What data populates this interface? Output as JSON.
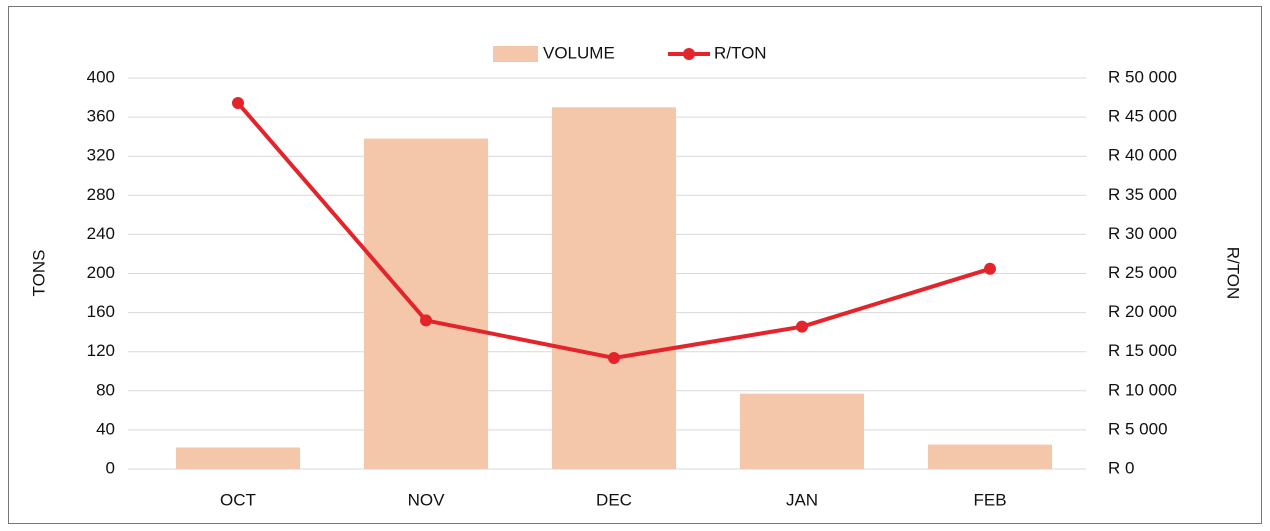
{
  "chart_data": {
    "type": "bar",
    "categories": [
      "OCT",
      "NOV",
      "DEC",
      "JAN",
      "FEB"
    ],
    "series": [
      {
        "name": "VOLUME",
        "type": "bar",
        "color": "#f4c7ab",
        "values": [
          22,
          338,
          370,
          77,
          25
        ]
      },
      {
        "name": "R/TON",
        "type": "line",
        "axis": "y2",
        "color": "#e3242b",
        "values": [
          46800,
          19000,
          14200,
          18200,
          25600
        ]
      }
    ],
    "ylabel": "TONS",
    "y2label": "R/TON",
    "ylim": [
      0,
      400
    ],
    "yticks": [
      0,
      40,
      80,
      120,
      160,
      200,
      240,
      280,
      320,
      360,
      400
    ],
    "y2lim": [
      0,
      50000
    ],
    "y2ticks": [
      {
        "value": 0,
        "label": "R 0"
      },
      {
        "value": 5000,
        "label": "R 5 000"
      },
      {
        "value": 10000,
        "label": "R 10 000"
      },
      {
        "value": 15000,
        "label": "R 15 000"
      },
      {
        "value": 20000,
        "label": "R 20 000"
      },
      {
        "value": 25000,
        "label": "R 25 000"
      },
      {
        "value": 30000,
        "label": "R 30 000"
      },
      {
        "value": 35000,
        "label": "R 35 000"
      },
      {
        "value": 40000,
        "label": "R 40 000"
      },
      {
        "value": 45000,
        "label": "R 45 000"
      },
      {
        "value": 50000,
        "label": "R 50 000"
      }
    ],
    "grid": true,
    "legend": "top"
  }
}
